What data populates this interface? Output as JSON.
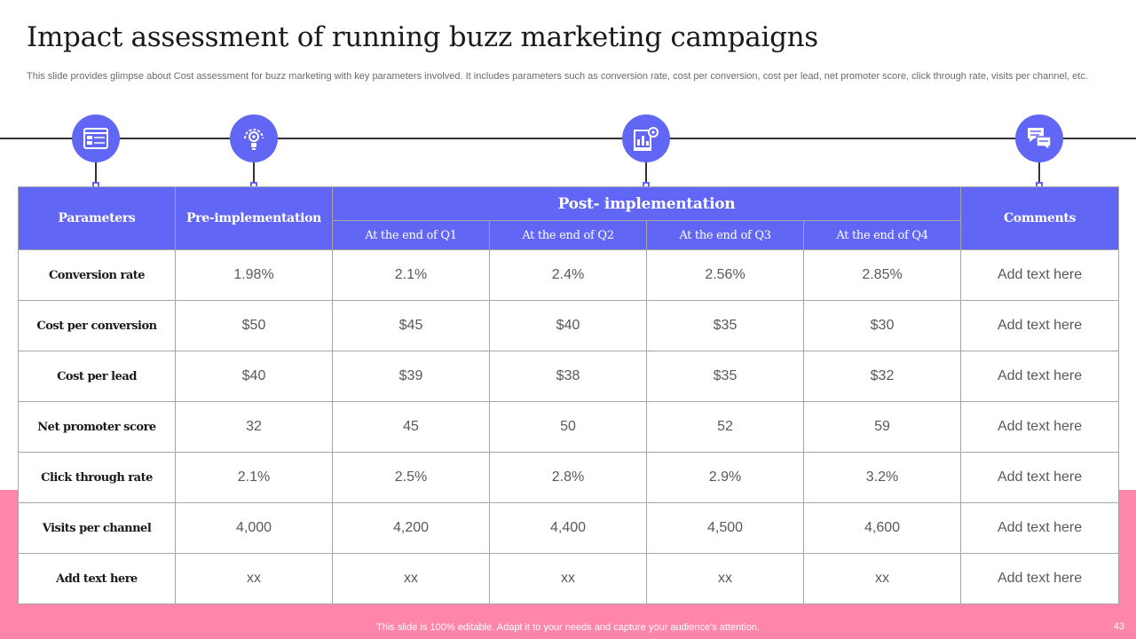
{
  "slide": {
    "title": "Impact assessment of running buzz marketing campaigns",
    "subtitle": "This slide provides glimpse about Cost assessment for buzz  marketing with key parameters involved. It includes parameters such as conversion rate, cost per conversion, cost per lead, net promoter score, click through rate, visits per channel, etc.",
    "footer": "This slide is 100% editable. Adapt it to your needs and capture your audience's attention.",
    "page_number": "43",
    "colors": {
      "accent": "#6166f5",
      "pink": "#ff85ab",
      "timeline": "#333333"
    },
    "icons": [
      "dashboard-icon",
      "gear-bulb-icon",
      "report-gear-icon",
      "chat-bubbles-icon"
    ]
  },
  "table": {
    "headers": {
      "parameters": "Parameters",
      "pre": "Pre-implementation",
      "post": "Post- implementation",
      "comments": "Comments",
      "quarters": [
        "At the end of Q1",
        "At the end of Q2",
        "At the end of Q3",
        "At the end of Q4"
      ]
    },
    "rows": [
      {
        "param": "Conversion rate",
        "pre": "1.98%",
        "q": [
          "2.1%",
          "2.4%",
          "2.56%",
          "2.85%"
        ],
        "comment": "Add text here"
      },
      {
        "param": "Cost per conversion",
        "pre": "$50",
        "q": [
          "$45",
          "$40",
          "$35",
          "$30"
        ],
        "comment": "Add text here"
      },
      {
        "param": "Cost per lead",
        "pre": "$40",
        "q": [
          "$39",
          "$38",
          "$35",
          "$32"
        ],
        "comment": "Add text here"
      },
      {
        "param": "Net promoter score",
        "pre": "32",
        "q": [
          "45",
          "50",
          "52",
          "59"
        ],
        "comment": "Add text here"
      },
      {
        "param": "Click through rate",
        "pre": "2.1%",
        "q": [
          "2.5%",
          "2.8%",
          "2.9%",
          "3.2%"
        ],
        "comment": "Add text here"
      },
      {
        "param": "Visits per channel",
        "pre": "4,000",
        "q": [
          "4,200",
          "4,400",
          "4,500",
          "4,600"
        ],
        "comment": "Add text here"
      },
      {
        "param": "Add text here",
        "pre": "xx",
        "q": [
          "xx",
          "xx",
          "xx",
          "xx"
        ],
        "comment": "Add text here"
      }
    ]
  }
}
